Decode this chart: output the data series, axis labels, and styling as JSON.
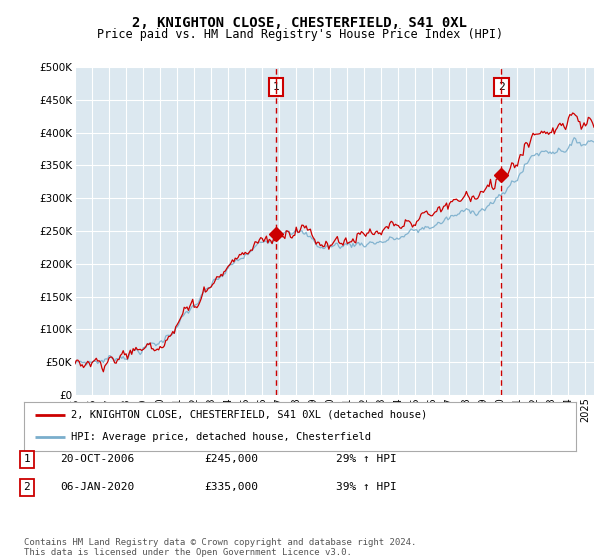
{
  "title": "2, KNIGHTON CLOSE, CHESTERFIELD, S41 0XL",
  "subtitle": "Price paid vs. HM Land Registry's House Price Index (HPI)",
  "ylim": [
    0,
    500000
  ],
  "xlim_start": 1995.0,
  "xlim_end": 2025.5,
  "sale1_x": 2006.8,
  "sale1_y": 245000,
  "sale1_label": "1",
  "sale2_x": 2020.05,
  "sale2_y": 335000,
  "sale2_label": "2",
  "legend_line1": "2, KNIGHTON CLOSE, CHESTERFIELD, S41 0XL (detached house)",
  "legend_line2": "HPI: Average price, detached house, Chesterfield",
  "annotation1_date": "20-OCT-2006",
  "annotation1_price": "£245,000",
  "annotation1_hpi": "29% ↑ HPI",
  "annotation2_date": "06-JAN-2020",
  "annotation2_price": "£335,000",
  "annotation2_hpi": "39% ↑ HPI",
  "footer": "Contains HM Land Registry data © Crown copyright and database right 2024.\nThis data is licensed under the Open Government Licence v3.0.",
  "line_color_red": "#cc0000",
  "line_color_blue": "#7aaecc",
  "bg_color": "#dce8f0",
  "grid_color": "#ffffff",
  "box_color_red": "#cc0000",
  "yticks": [
    0,
    50000,
    100000,
    150000,
    200000,
    250000,
    300000,
    350000,
    400000,
    450000,
    500000
  ],
  "ylabels": [
    "£0",
    "£50K",
    "£100K",
    "£150K",
    "£200K",
    "£250K",
    "£300K",
    "£350K",
    "£400K",
    "£450K",
    "£500K"
  ]
}
